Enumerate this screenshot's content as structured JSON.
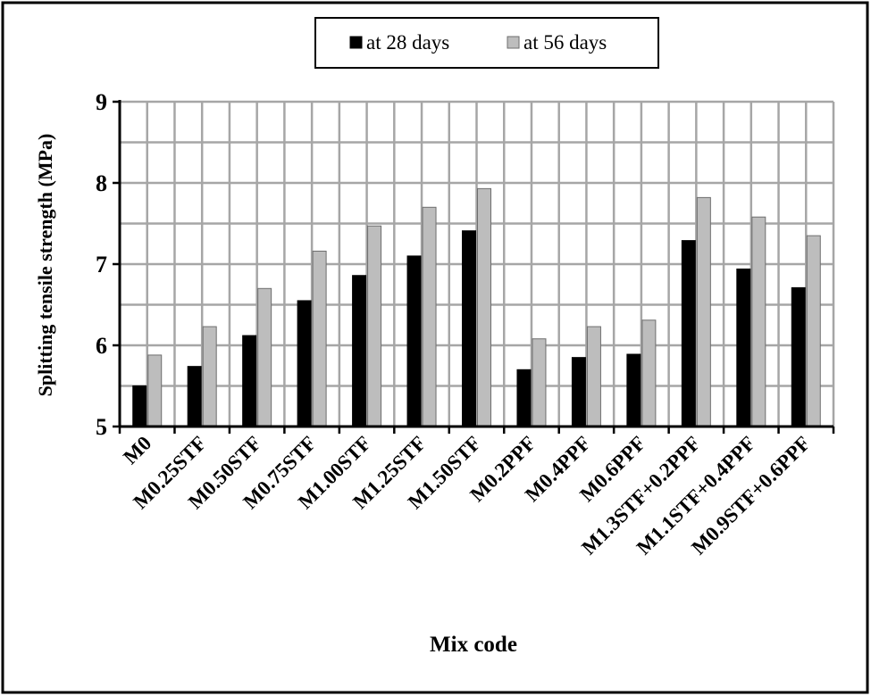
{
  "chart_data": {
    "type": "bar",
    "title": "",
    "xlabel": "Mix code",
    "ylabel": "Splitting tensile strength (MPa)",
    "ylim": [
      5,
      9
    ],
    "yticks": [
      5,
      6,
      7,
      8,
      9
    ],
    "grid": true,
    "legend_position": "top",
    "categories": [
      "M0",
      "M0.25STF",
      "M0.50STF",
      "M0.75STF",
      "M1.00STF",
      "M1.25STF",
      "M1.50STF",
      "M0.2PPF",
      "M0.4PPF",
      "M0.6PPF",
      "M1.3STF+0.2PPF",
      "M1.1STF+0.4PPF",
      "M0.9STF+0.6PPF"
    ],
    "series": [
      {
        "name": "at 28 days",
        "color": "#000000",
        "values": [
          5.5,
          5.74,
          6.12,
          6.55,
          6.86,
          7.1,
          7.41,
          5.7,
          5.85,
          5.89,
          7.29,
          6.94,
          6.71
        ]
      },
      {
        "name": "at 56 days",
        "color": "#bdbdbd",
        "values": [
          5.88,
          6.23,
          6.7,
          7.16,
          7.47,
          7.7,
          7.93,
          6.08,
          6.23,
          6.31,
          7.82,
          7.58,
          7.35
        ]
      }
    ]
  }
}
